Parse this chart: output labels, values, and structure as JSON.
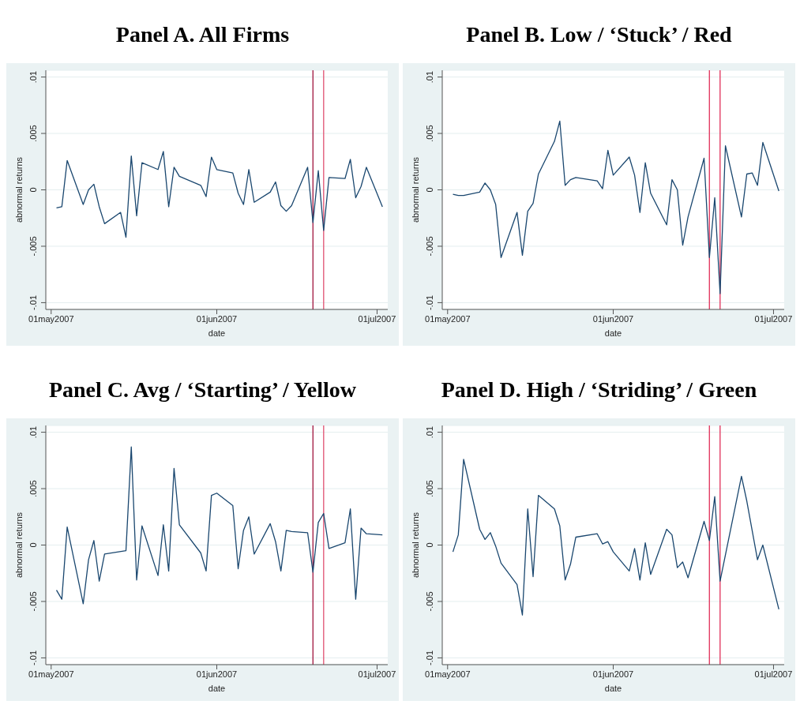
{
  "chart_data": [
    {
      "type": "line",
      "title": "Panel A. All Firms",
      "xlabel": "date",
      "ylabel": "abnormal returns",
      "grid": "y",
      "xlim": [
        "2007-04-30",
        "2007-07-03"
      ],
      "xticks": [
        {
          "value": "2007-05-01",
          "label": "01may2007"
        },
        {
          "value": "2007-06-01",
          "label": "01jun2007"
        },
        {
          "value": "2007-07-01",
          "label": "01jul2007"
        }
      ],
      "ylim": [
        -0.0106,
        0.0106
      ],
      "yticks": [
        {
          "value": -0.01,
          "label": "-.01"
        },
        {
          "value": -0.005,
          "label": "-.005"
        },
        {
          "value": 0,
          "label": "0"
        },
        {
          "value": 0.005,
          "label": ".005"
        },
        {
          "value": 0.01,
          "label": ".01"
        }
      ],
      "ref_lines": [
        {
          "axis": "x",
          "value": "2007-06-19",
          "color": "#a0153e"
        },
        {
          "axis": "x",
          "value": "2007-06-21",
          "color": "#e05070"
        }
      ],
      "series": [
        {
          "color": "#1a476f",
          "x": [
            "2007-05-02",
            "2007-05-03",
            "2007-05-04",
            "2007-05-07",
            "2007-05-08",
            "2007-05-09",
            "2007-05-10",
            "2007-05-11",
            "2007-05-14",
            "2007-05-15",
            "2007-05-16",
            "2007-05-17",
            "2007-05-18",
            "2007-05-21",
            "2007-05-22",
            "2007-05-23",
            "2007-05-24",
            "2007-05-25",
            "2007-05-29",
            "2007-05-30",
            "2007-05-31",
            "2007-06-01",
            "2007-06-04",
            "2007-06-05",
            "2007-06-06",
            "2007-06-07",
            "2007-06-08",
            "2007-06-11",
            "2007-06-12",
            "2007-06-13",
            "2007-06-14",
            "2007-06-15",
            "2007-06-18",
            "2007-06-19",
            "2007-06-20",
            "2007-06-21",
            "2007-06-22",
            "2007-06-25",
            "2007-06-26",
            "2007-06-27",
            "2007-06-28",
            "2007-06-29",
            "2007-07-02"
          ],
          "values": [
            -0.0016,
            -0.0015,
            0.0026,
            -0.0013,
            0,
            0.0005,
            -0.0015,
            -0.003,
            -0.002,
            -0.0042,
            0.003,
            -0.0023,
            0.0024,
            0.0018,
            0.0034,
            -0.0015,
            0.002,
            0.0012,
            0.0004,
            -0.0006,
            0.0029,
            0.0018,
            0.0015,
            -0.0003,
            -0.0013,
            0.0018,
            -0.0011,
            -0.0002,
            0.0007,
            -0.0014,
            -0.0019,
            -0.0014,
            0.002,
            -0.0029,
            0.0017,
            -0.0036,
            0.0011,
            0.001,
            0.0027,
            -0.0007,
            0.0003,
            0.002,
            -0.0015
          ]
        }
      ]
    },
    {
      "type": "line",
      "title": "Panel B. Low / ‘Stuck’ / Red",
      "xlabel": "date",
      "ylabel": "abnormal returns",
      "grid": "y",
      "xlim": [
        "2007-04-30",
        "2007-07-03"
      ],
      "xticks": [
        {
          "value": "2007-05-01",
          "label": "01may2007"
        },
        {
          "value": "2007-06-01",
          "label": "01jun2007"
        },
        {
          "value": "2007-07-01",
          "label": "01jul2007"
        }
      ],
      "ylim": [
        -0.0106,
        0.0106
      ],
      "yticks": [
        {
          "value": -0.01,
          "label": "-.01"
        },
        {
          "value": -0.005,
          "label": "-.005"
        },
        {
          "value": 0,
          "label": "0"
        },
        {
          "value": 0.005,
          "label": ".005"
        },
        {
          "value": 0.01,
          "label": ".01"
        }
      ],
      "ref_lines": [
        {
          "axis": "x",
          "value": "2007-06-19",
          "color": "#e0305a"
        },
        {
          "axis": "x",
          "value": "2007-06-21",
          "color": "#e0305a"
        }
      ],
      "series": [
        {
          "color": "#1a476f",
          "x": [
            "2007-05-02",
            "2007-05-03",
            "2007-05-04",
            "2007-05-07",
            "2007-05-08",
            "2007-05-09",
            "2007-05-10",
            "2007-05-11",
            "2007-05-14",
            "2007-05-15",
            "2007-05-16",
            "2007-05-17",
            "2007-05-18",
            "2007-05-21",
            "2007-05-22",
            "2007-05-23",
            "2007-05-24",
            "2007-05-25",
            "2007-05-29",
            "2007-05-30",
            "2007-05-31",
            "2007-06-01",
            "2007-06-04",
            "2007-06-05",
            "2007-06-06",
            "2007-06-07",
            "2007-06-08",
            "2007-06-11",
            "2007-06-12",
            "2007-06-13",
            "2007-06-14",
            "2007-06-15",
            "2007-06-18",
            "2007-06-19",
            "2007-06-20",
            "2007-06-21",
            "2007-06-22",
            "2007-06-25",
            "2007-06-26",
            "2007-06-27",
            "2007-06-28",
            "2007-06-29",
            "2007-07-02"
          ],
          "values": [
            -0.0004,
            -0.0005,
            -0.0005,
            -0.0002,
            0.0006,
            0,
            -0.0013,
            -0.006,
            -0.002,
            -0.0058,
            -0.0019,
            -0.0012,
            0.0014,
            0.0043,
            0.0061,
            0.0004,
            0.0009,
            0.0011,
            0.0008,
            0.0001,
            0.0035,
            0.0013,
            0.0029,
            0.0013,
            -0.002,
            0.0024,
            -0.0003,
            -0.0031,
            0.0009,
            0,
            -0.0049,
            -0.0024,
            0.0028,
            -0.006,
            -0.0007,
            -0.0092,
            0.0039,
            -0.0024,
            0.0014,
            0.0015,
            0.0004,
            0.0042,
            -0.0001
          ]
        }
      ]
    },
    {
      "type": "line",
      "title": "Panel C. Avg / ‘Starting’ / Yellow",
      "xlabel": "date",
      "ylabel": "abnormal returns",
      "grid": "y",
      "xlim": [
        "2007-04-30",
        "2007-07-03"
      ],
      "xticks": [
        {
          "value": "2007-05-01",
          "label": "01may2007"
        },
        {
          "value": "2007-06-01",
          "label": "01jun2007"
        },
        {
          "value": "2007-07-01",
          "label": "01jul2007"
        }
      ],
      "ylim": [
        -0.0106,
        0.0106
      ],
      "yticks": [
        {
          "value": -0.01,
          "label": "-.01"
        },
        {
          "value": -0.005,
          "label": "-.005"
        },
        {
          "value": 0,
          "label": "0"
        },
        {
          "value": 0.005,
          "label": ".005"
        },
        {
          "value": 0.01,
          "label": ".01"
        }
      ],
      "ref_lines": [
        {
          "axis": "x",
          "value": "2007-06-19",
          "color": "#a0153e"
        },
        {
          "axis": "x",
          "value": "2007-06-21",
          "color": "#e05070"
        }
      ],
      "series": [
        {
          "color": "#1a476f",
          "x": [
            "2007-05-02",
            "2007-05-03",
            "2007-05-04",
            "2007-05-07",
            "2007-05-08",
            "2007-05-09",
            "2007-05-10",
            "2007-05-11",
            "2007-05-15",
            "2007-05-16",
            "2007-05-17",
            "2007-05-18",
            "2007-05-21",
            "2007-05-22",
            "2007-05-23",
            "2007-05-24",
            "2007-05-25",
            "2007-05-29",
            "2007-05-30",
            "2007-05-31",
            "2007-06-01",
            "2007-06-04",
            "2007-06-05",
            "2007-06-06",
            "2007-06-07",
            "2007-06-08",
            "2007-06-11",
            "2007-06-12",
            "2007-06-13",
            "2007-06-14",
            "2007-06-15",
            "2007-06-18",
            "2007-06-19",
            "2007-06-20",
            "2007-06-21",
            "2007-06-22",
            "2007-06-25",
            "2007-06-26",
            "2007-06-27",
            "2007-06-28",
            "2007-06-29",
            "2007-07-02"
          ],
          "values": [
            -0.004,
            -0.0048,
            0.0016,
            -0.0052,
            -0.0013,
            0.0004,
            -0.0032,
            -0.0008,
            -0.0005,
            0.0087,
            -0.0031,
            0.0017,
            -0.0027,
            0.0018,
            -0.0023,
            0.0068,
            0.0018,
            -0.0007,
            -0.0023,
            0.0044,
            0.0046,
            0.0035,
            -0.0021,
            0.0013,
            0.0025,
            -0.0008,
            0.0019,
            0.0003,
            -0.0023,
            0.0013,
            0.0012,
            0.0011,
            -0.0024,
            0.002,
            0.0028,
            -0.0003,
            0.0002,
            0.0032,
            -0.0048,
            0.0015,
            0.001,
            0.0009
          ]
        }
      ]
    },
    {
      "type": "line",
      "title": "Panel D. High / ‘Striding’ / Green",
      "xlabel": "date",
      "ylabel": "abnormal returns",
      "grid": "y",
      "xlim": [
        "2007-04-30",
        "2007-07-03"
      ],
      "xticks": [
        {
          "value": "2007-05-01",
          "label": "01may2007"
        },
        {
          "value": "2007-06-01",
          "label": "01jun2007"
        },
        {
          "value": "2007-07-01",
          "label": "01jul2007"
        }
      ],
      "ylim": [
        -0.0106,
        0.0106
      ],
      "yticks": [
        {
          "value": -0.01,
          "label": "-.01"
        },
        {
          "value": -0.005,
          "label": "-.005"
        },
        {
          "value": 0,
          "label": "0"
        },
        {
          "value": 0.005,
          "label": ".005"
        },
        {
          "value": 0.01,
          "label": ".01"
        }
      ],
      "ref_lines": [
        {
          "axis": "x",
          "value": "2007-06-19",
          "color": "#e0305a"
        },
        {
          "axis": "x",
          "value": "2007-06-21",
          "color": "#e0305a"
        }
      ],
      "series": [
        {
          "color": "#1a476f",
          "x": [
            "2007-05-02",
            "2007-05-03",
            "2007-05-04",
            "2007-05-07",
            "2007-05-08",
            "2007-05-09",
            "2007-05-10",
            "2007-05-11",
            "2007-05-14",
            "2007-05-15",
            "2007-05-16",
            "2007-05-17",
            "2007-05-18",
            "2007-05-21",
            "2007-05-22",
            "2007-05-23",
            "2007-05-24",
            "2007-05-25",
            "2007-05-29",
            "2007-05-30",
            "2007-05-31",
            "2007-06-01",
            "2007-06-04",
            "2007-06-05",
            "2007-06-06",
            "2007-06-07",
            "2007-06-08",
            "2007-06-11",
            "2007-06-12",
            "2007-06-13",
            "2007-06-14",
            "2007-06-15",
            "2007-06-18",
            "2007-06-19",
            "2007-06-20",
            "2007-06-21",
            "2007-06-25",
            "2007-06-26",
            "2007-06-28",
            "2007-06-29",
            "2007-07-02"
          ],
          "values": [
            -0.0006,
            0.0009,
            0.0076,
            0.0014,
            0.0005,
            0.0011,
            -0.0001,
            -0.0016,
            -0.0035,
            -0.0062,
            0.0032,
            -0.0028,
            0.0044,
            0.0032,
            0.0017,
            -0.0031,
            -0.0017,
            0.0007,
            0.001,
            0.0001,
            0.0003,
            -0.0006,
            -0.0023,
            -0.0003,
            -0.0031,
            0.0002,
            -0.0026,
            0.0014,
            0.0009,
            -0.002,
            -0.0015,
            -0.0029,
            0.0021,
            0.0004,
            0.0043,
            -0.0032,
            0.0061,
            0.0039,
            -0.0013,
            0,
            -0.0057
          ]
        }
      ]
    }
  ]
}
